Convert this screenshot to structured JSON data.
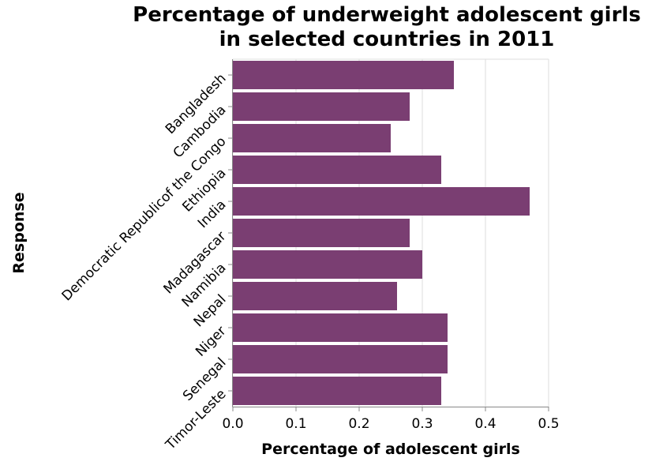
{
  "chart_data": {
    "type": "bar",
    "orientation": "horizontal",
    "title_lines": [
      "Percentage of underweight adolescent girls",
      "in selected countries in 2011"
    ],
    "xlabel": "Percentage of adolescent girls",
    "ylabel": "Response",
    "categories": [
      "Bangladesh",
      "Cambodia",
      "Democratic Republicof the Congo",
      "Ethiopia",
      "India",
      "Madagascar",
      "Namibia",
      "Nepal",
      "Niger",
      "Senegal",
      "Timor-Leste"
    ],
    "values": [
      0.35,
      0.28,
      0.25,
      0.33,
      0.47,
      0.28,
      0.3,
      0.26,
      0.34,
      0.34,
      0.33
    ],
    "xlim": [
      0,
      0.5
    ],
    "xticks": [
      "0.0",
      "0.1",
      "0.2",
      "0.3",
      "0.4",
      "0.5"
    ],
    "grid": true,
    "bar_color": "#7a3e72"
  }
}
